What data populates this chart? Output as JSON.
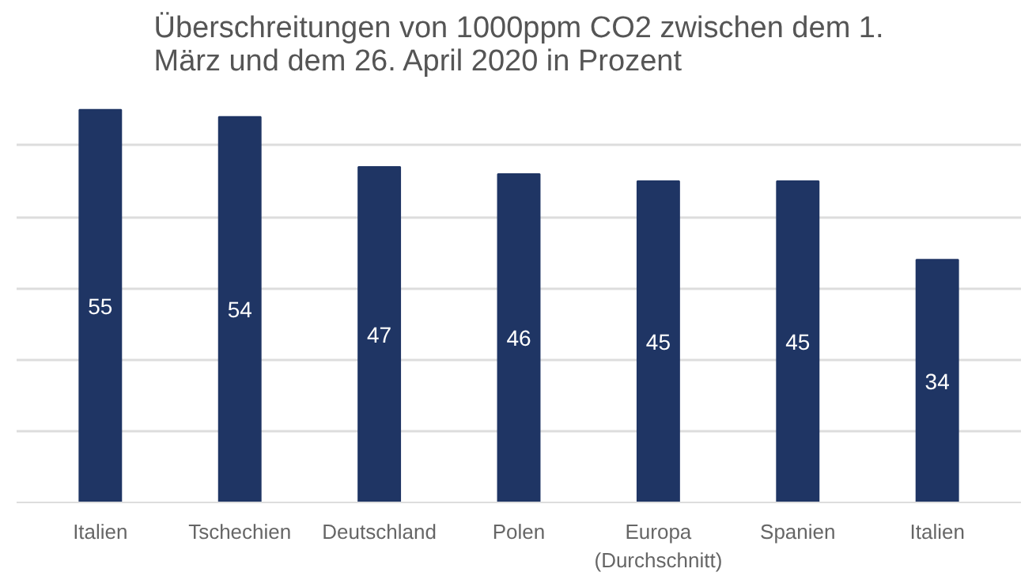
{
  "chart_data": {
    "type": "bar",
    "title": "Überschreitungen von 1000ppm CO2 zwischen dem 1.\nMärz und dem 26. April 2020 in Prozent",
    "categories": [
      "Italien",
      "Tschechien",
      "Deutschland",
      "Polen",
      "Europa\n(Durchschnitt)",
      "Spanien",
      "Italien"
    ],
    "values": [
      55,
      54,
      47,
      46,
      45,
      45,
      34
    ],
    "color": "#1f3564",
    "tick_labels": "x",
    "grid": "y",
    "data_labels": true
  }
}
